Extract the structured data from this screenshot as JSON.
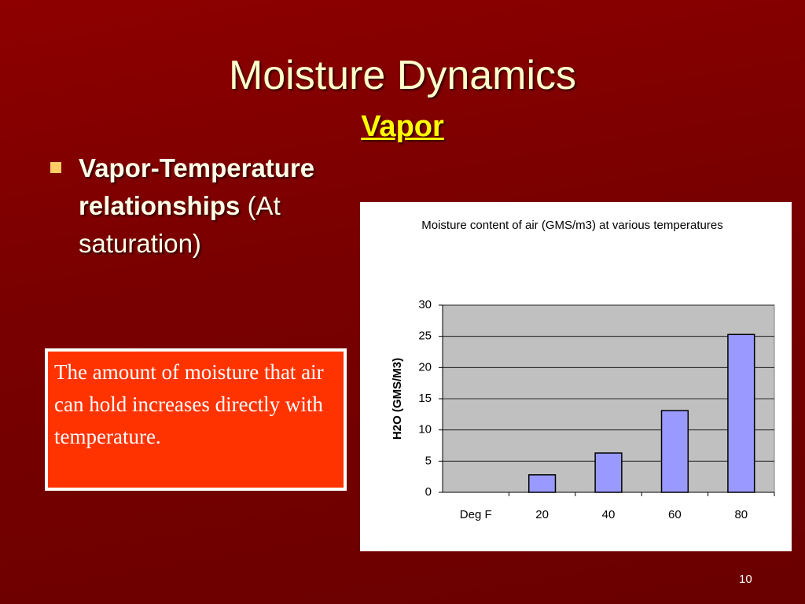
{
  "title": "Moisture Dynamics",
  "subtitle": "Vapor",
  "bullet": {
    "bold": "Vapor-Temperature relationships",
    "rest": "(At saturation)"
  },
  "callout": "The amount of moisture that air can hold increases directly with temperature.",
  "page_number": 10,
  "chart_data": {
    "type": "bar",
    "title": "Moisture content of air (GMS/m3) at various temperatures",
    "y_label": "H2O (GMS/M3)",
    "categories": [
      "Deg F",
      "20",
      "40",
      "60",
      "80"
    ],
    "values": [
      null,
      2.8,
      6.3,
      13.1,
      25.3
    ],
    "color": "#9999ff",
    "ylim": [
      0,
      30
    ],
    "yticks": [
      0,
      5,
      10,
      15,
      20,
      25,
      30
    ],
    "grid": true
  }
}
